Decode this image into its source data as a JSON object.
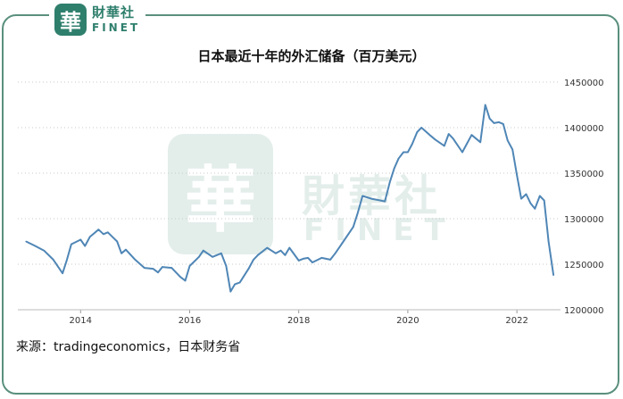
{
  "logo": {
    "cn": "財華社",
    "en": "FINET",
    "seal": "華"
  },
  "source": "来源：tradingeconomics，日本财务省",
  "chart_data": {
    "type": "line",
    "title": "日本最近十年的外汇储备（百万美元）",
    "xlabel": "",
    "ylabel": "",
    "xlim": [
      2012.85,
      2022.8
    ],
    "ylim": [
      1200000,
      1450000
    ],
    "x_ticks": [
      "2014",
      "2016",
      "2018",
      "2020",
      "2022"
    ],
    "y_ticks": [
      "1450000",
      "1400000",
      "1350000",
      "1300000",
      "1250000",
      "1200000"
    ],
    "grid": "horizontal dotted",
    "axis_side": "right",
    "color": "#4f86b6",
    "x": [
      2013.0,
      2013.17,
      2013.33,
      2013.5,
      2013.67,
      2013.75,
      2013.83,
      2014.0,
      2014.08,
      2014.17,
      2014.33,
      2014.42,
      2014.5,
      2014.67,
      2014.75,
      2014.83,
      2015.0,
      2015.17,
      2015.33,
      2015.42,
      2015.5,
      2015.67,
      2015.83,
      2015.92,
      2016.0,
      2016.17,
      2016.25,
      2016.42,
      2016.58,
      2016.67,
      2016.75,
      2016.83,
      2016.92,
      2017.08,
      2017.17,
      2017.25,
      2017.42,
      2017.58,
      2017.67,
      2017.75,
      2017.83,
      2018.0,
      2018.08,
      2018.17,
      2018.25,
      2018.42,
      2018.58,
      2018.67,
      2018.83,
      2019.0,
      2019.08,
      2019.17,
      2019.33,
      2019.5,
      2019.58,
      2019.67,
      2019.75,
      2019.83,
      2019.92,
      2020.0,
      2020.08,
      2020.17,
      2020.25,
      2020.42,
      2020.5,
      2020.67,
      2020.75,
      2020.83,
      2021.0,
      2021.08,
      2021.17,
      2021.33,
      2021.42,
      2021.5,
      2021.58,
      2021.67,
      2021.75,
      2021.83,
      2021.92,
      2022.0,
      2022.08,
      2022.17,
      2022.25,
      2022.33,
      2022.42,
      2022.5,
      2022.58,
      2022.67
    ],
    "values": [
      1275000,
      1270000,
      1265000,
      1255000,
      1240000,
      1255000,
      1272000,
      1277000,
      1270000,
      1280000,
      1288000,
      1283000,
      1285000,
      1275000,
      1262000,
      1266000,
      1255000,
      1246000,
      1245000,
      1241000,
      1247000,
      1246000,
      1236000,
      1232000,
      1248000,
      1258000,
      1265000,
      1258000,
      1262000,
      1248000,
      1220000,
      1228000,
      1230000,
      1245000,
      1255000,
      1260000,
      1268000,
      1262000,
      1265000,
      1260000,
      1268000,
      1254000,
      1256000,
      1257000,
      1252000,
      1257000,
      1255000,
      1262000,
      1276000,
      1291000,
      1306000,
      1325000,
      1322000,
      1320000,
      1319000,
      1340000,
      1355000,
      1366000,
      1373000,
      1373000,
      1382000,
      1395000,
      1400000,
      1391000,
      1387000,
      1380000,
      1393000,
      1388000,
      1373000,
      1382000,
      1392000,
      1384000,
      1425000,
      1410000,
      1405000,
      1406000,
      1404000,
      1386000,
      1376000,
      1348000,
      1322000,
      1327000,
      1317000,
      1311000,
      1325000,
      1320000,
      1275000,
      1238000
    ]
  }
}
